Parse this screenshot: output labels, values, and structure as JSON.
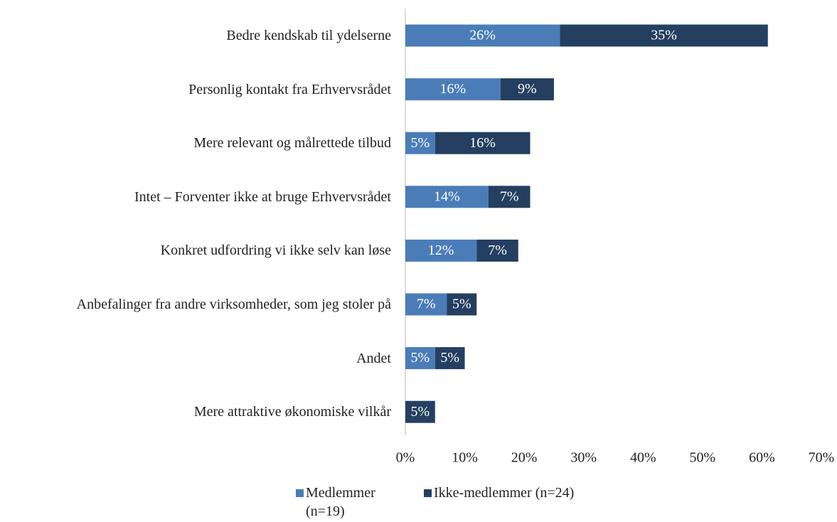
{
  "chart_data": {
    "type": "stacked-bar-horizontal",
    "categories": [
      "Bedre kendskab til ydelserne",
      "Personlig kontakt fra Erhvervsrådet",
      "Mere relevant og målrettede tilbud",
      "Intet – Forventer ikke at bruge Erhvervsrådet",
      "Konkret udfordring vi ikke selv kan løse",
      "Anbefalinger fra andre virksomheder, som jeg stoler på",
      "Andet",
      "Mere attraktive økonomiske vilkår"
    ],
    "series": [
      {
        "name": "Medlemmer (n=19)",
        "color": "#4a7db7",
        "values": [
          26,
          16,
          5,
          14,
          12,
          7,
          5,
          null
        ],
        "value_labels": [
          "26%",
          "16%",
          "5%",
          "14%",
          "12%",
          "7%",
          "5%",
          null
        ]
      },
      {
        "name": "Ikke-medlemmer (n=24)",
        "color": "#243f60",
        "values": [
          35,
          9,
          16,
          7,
          7,
          5,
          5,
          5
        ],
        "value_labels": [
          "35%",
          "9%",
          "16%",
          "7%",
          "7%",
          "5%",
          "5%",
          "5%"
        ]
      }
    ],
    "xlim": [
      0,
      70
    ],
    "xticks": [
      {
        "value": 0,
        "label": "0%"
      },
      {
        "value": 10,
        "label": "10%"
      },
      {
        "value": 20,
        "label": "20%"
      },
      {
        "value": 30,
        "label": "30%"
      },
      {
        "value": 40,
        "label": "40%"
      },
      {
        "value": 50,
        "label": "50%"
      },
      {
        "value": 60,
        "label": "60%"
      },
      {
        "value": 70,
        "label": "70%"
      }
    ],
    "legend": "bottom"
  }
}
